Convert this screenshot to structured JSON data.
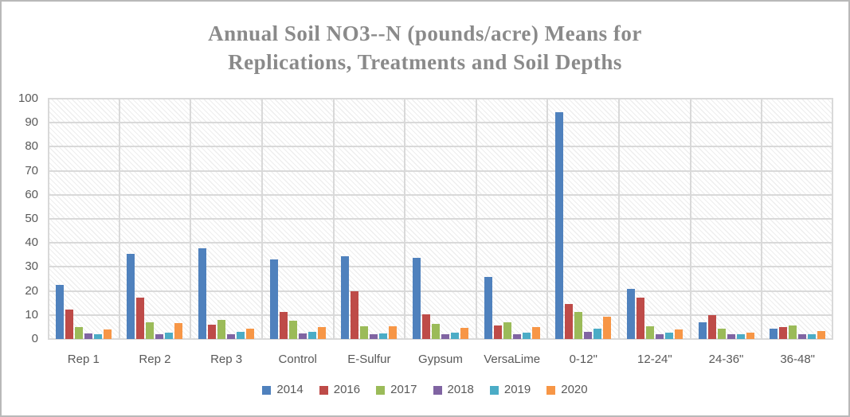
{
  "chart_data": {
    "type": "bar",
    "title": "Annual Soil NO3--N (pounds/acre) Means for\nReplications, Treatments and Soil Depths",
    "categories": [
      "Rep 1",
      "Rep 2",
      "Rep 3",
      "Control",
      "E-Sulfur",
      "Gypsum",
      "VersaLime",
      "0-12\"",
      "12-24\"",
      "24-36\"",
      "36-48\""
    ],
    "series": [
      {
        "name": "2014",
        "color": "#4F81BD",
        "values": [
          22.6,
          35.4,
          37.6,
          33.2,
          34.6,
          33.9,
          25.8,
          94.5,
          20.9,
          7.1,
          4.4
        ]
      },
      {
        "name": "2016",
        "color": "#BE4B48",
        "values": [
          12.2,
          17.1,
          5.9,
          11.3,
          19.9,
          10.3,
          5.7,
          14.7,
          17.3,
          9.9,
          4.9
        ]
      },
      {
        "name": "2017",
        "color": "#9BBB59",
        "values": [
          4.9,
          7.0,
          8.1,
          7.5,
          5.3,
          6.4,
          7.0,
          11.2,
          5.2,
          4.4,
          5.7
        ]
      },
      {
        "name": "2018",
        "color": "#8064A2",
        "values": [
          2.3,
          1.9,
          1.9,
          2.3,
          2.1,
          2.0,
          2.1,
          3.1,
          2.0,
          1.9,
          1.9
        ]
      },
      {
        "name": "2019",
        "color": "#4BACC6",
        "values": [
          2.0,
          2.5,
          2.9,
          3.0,
          2.2,
          2.6,
          2.6,
          4.2,
          2.5,
          2.0,
          2.0
        ]
      },
      {
        "name": "2020",
        "color": "#F79646",
        "values": [
          4.0,
          6.5,
          4.4,
          4.9,
          5.2,
          4.8,
          5.0,
          9.4,
          4.0,
          2.6,
          3.3
        ]
      }
    ],
    "xlabel": "",
    "ylabel": "",
    "ylim": [
      0,
      100
    ],
    "yticks": [
      0,
      10,
      20,
      30,
      40,
      50,
      60,
      70,
      80,
      90,
      100
    ],
    "grid": "horizontal and vertical major gridlines, hatched plot fill",
    "legend_position": "bottom"
  }
}
